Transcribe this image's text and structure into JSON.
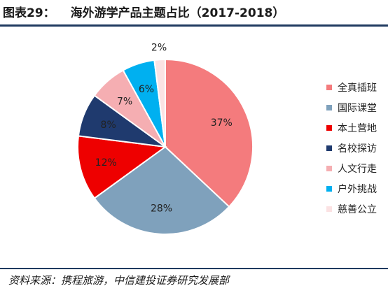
{
  "figure": {
    "label": "图表29：",
    "title": "海外游学产品主题占比（2017-2018）",
    "source": "资料来源：携程旅游，中信建投证券研究发展部"
  },
  "chart_data": {
    "type": "pie",
    "title": "海外游学产品主题占比（2017-2018）",
    "slices": [
      {
        "label": "全真插班",
        "value": 37,
        "display": "37%",
        "color": "#f47b7d"
      },
      {
        "label": "国际课堂",
        "value": 28,
        "display": "28%",
        "color": "#7fa1bc"
      },
      {
        "label": "本土营地",
        "value": 12,
        "display": "12%",
        "color": "#ee0000"
      },
      {
        "label": "名校探访",
        "value": 8,
        "display": "8%",
        "color": "#1f3a6e"
      },
      {
        "label": "人文行走",
        "value": 7,
        "display": "7%",
        "color": "#f5aeb2"
      },
      {
        "label": "户外挑战",
        "value": 6,
        "display": "6%",
        "color": "#00b0f0"
      },
      {
        "label": "慈善公立",
        "value": 2,
        "display": "2%",
        "color": "#fbe2e3"
      }
    ],
    "legend_position": "right"
  }
}
